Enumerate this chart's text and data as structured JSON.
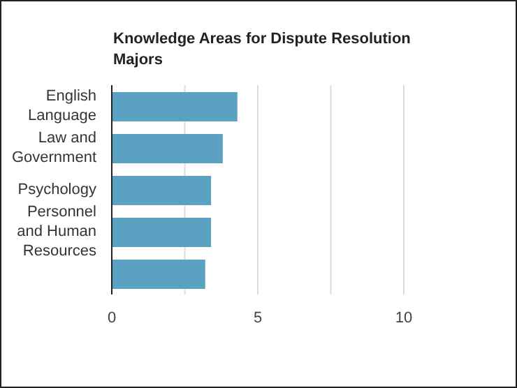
{
  "chart_data": {
    "type": "bar",
    "orientation": "horizontal",
    "title": "Knowledge Areas for Dispute Resolution Majors",
    "categories": [
      "English Language",
      "Law and Government",
      "Psychology",
      "Personnel and Human Resources",
      null
    ],
    "values": [
      4.3,
      3.8,
      3.4,
      3.4,
      3.2
    ],
    "color": "#5ba1c1",
    "xlim": [
      0,
      10
    ],
    "xticks": [
      0,
      {
        "value": 2.5,
        "label": null
      },
      5,
      {
        "value": 7.5,
        "label": null
      },
      10
    ],
    "grid": "x"
  }
}
